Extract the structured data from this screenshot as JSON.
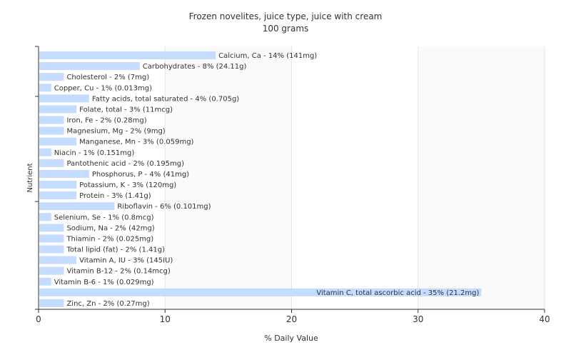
{
  "chart_data": {
    "type": "bar",
    "orientation": "horizontal",
    "title": "Frozen novelites, juice type, juice with cream",
    "subtitle": "100 grams",
    "xlabel": "% Daily Value",
    "ylabel": "Nutrient",
    "xlim": [
      0,
      40
    ],
    "xticks": [
      0,
      10,
      20,
      30,
      40
    ],
    "grid": true,
    "bar_color": "#c4dcff",
    "categories": [
      "Calcium, Ca",
      "Carbohydrates",
      "Cholesterol",
      "Copper, Cu",
      "Fatty acids, total saturated",
      "Folate, total",
      "Iron, Fe",
      "Magnesium, Mg",
      "Manganese, Mn",
      "Niacin",
      "Pantothenic acid",
      "Phosphorus, P",
      "Potassium, K",
      "Protein",
      "Riboflavin",
      "Selenium, Se",
      "Sodium, Na",
      "Thiamin",
      "Total lipid (fat)",
      "Vitamin A, IU",
      "Vitamin B-12",
      "Vitamin B-6",
      "Vitamin C, total ascorbic acid",
      "Zinc, Zn"
    ],
    "values": [
      14,
      8,
      2,
      1,
      4,
      3,
      2,
      2,
      3,
      1,
      2,
      4,
      3,
      3,
      6,
      1,
      2,
      2,
      2,
      3,
      2,
      1,
      35,
      2
    ],
    "labels": [
      "Calcium, Ca - 14% (141mg)",
      "Carbohydrates - 8% (24.11g)",
      "Cholesterol - 2% (7mg)",
      "Copper, Cu - 1% (0.013mg)",
      "Fatty acids, total saturated - 4% (0.705g)",
      "Folate, total - 3% (11mcg)",
      "Iron, Fe - 2% (0.28mg)",
      "Magnesium, Mg - 2% (9mg)",
      "Manganese, Mn - 3% (0.059mg)",
      "Niacin - 1% (0.151mg)",
      "Pantothenic acid - 2% (0.195mg)",
      "Phosphorus, P - 4% (41mg)",
      "Potassium, K - 3% (120mg)",
      "Protein - 3% (1.41g)",
      "Riboflavin - 6% (0.101mg)",
      "Selenium, Se - 1% (0.8mcg)",
      "Sodium, Na - 2% (42mg)",
      "Thiamin - 2% (0.025mg)",
      "Total lipid (fat) - 2% (1.41g)",
      "Vitamin A, IU - 3% (145IU)",
      "Vitamin B-12 - 2% (0.14mcg)",
      "Vitamin B-6 - 1% (0.029mg)",
      "Vitamin C, total ascorbic acid - 35% (21.2mg)",
      "Zinc, Zn - 2% (0.27mg)"
    ]
  }
}
